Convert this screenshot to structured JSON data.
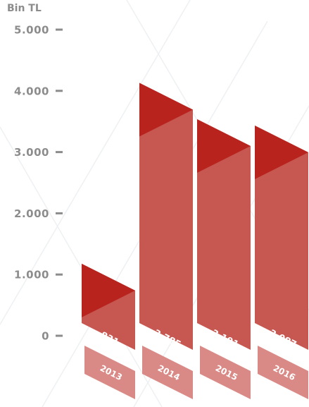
{
  "chart_data": {
    "type": "bar",
    "ylabel": "Bin TL",
    "ylim": [
      0,
      5000
    ],
    "yticks": [
      {
        "value": 0,
        "label": "0"
      },
      {
        "value": 1000,
        "label": "1.000"
      },
      {
        "value": 2000,
        "label": "2.000"
      },
      {
        "value": 3000,
        "label": "3.000"
      },
      {
        "value": 4000,
        "label": "4.000"
      },
      {
        "value": 5000,
        "label": "5.000"
      }
    ],
    "categories": [
      "2013",
      "2014",
      "2015",
      "2016"
    ],
    "values": [
      831,
      3785,
      3191,
      3087
    ],
    "value_labels": [
      "831",
      "3.785",
      "3.191",
      "3.087"
    ],
    "grid": false,
    "colors": {
      "bar": "#c65751",
      "bar_top": "#b8231d",
      "year_box": "#da8a86",
      "axis_text": "#8c8c8c"
    }
  }
}
